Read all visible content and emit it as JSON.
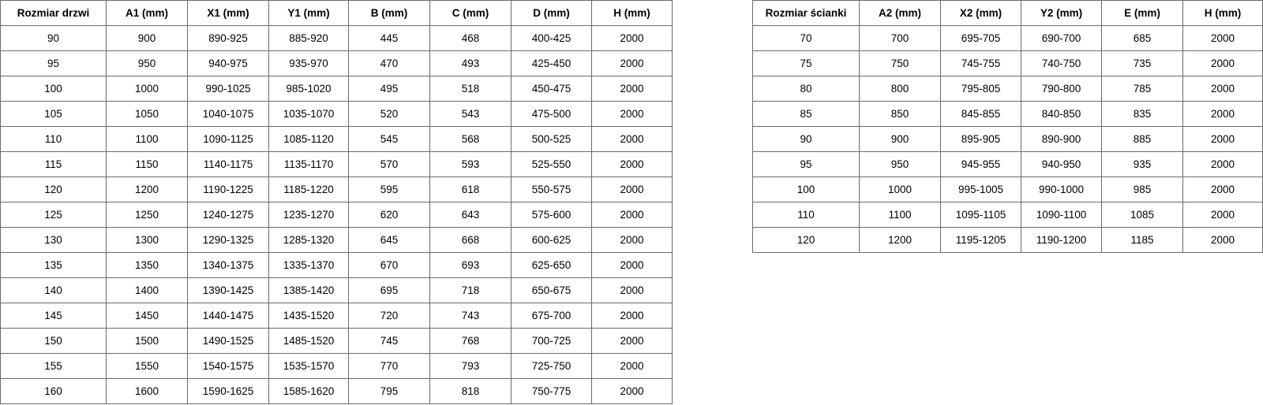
{
  "doors_table": {
    "headers": [
      "Rozmiar drzwi",
      "A1 (mm)",
      "X1 (mm)",
      "Y1 (mm)",
      "B (mm)",
      "C (mm)",
      "D (mm)",
      "H (mm)"
    ],
    "rows": [
      [
        "90",
        "900",
        "890-925",
        "885-920",
        "445",
        "468",
        "400-425",
        "2000"
      ],
      [
        "95",
        "950",
        "940-975",
        "935-970",
        "470",
        "493",
        "425-450",
        "2000"
      ],
      [
        "100",
        "1000",
        "990-1025",
        "985-1020",
        "495",
        "518",
        "450-475",
        "2000"
      ],
      [
        "105",
        "1050",
        "1040-1075",
        "1035-1070",
        "520",
        "543",
        "475-500",
        "2000"
      ],
      [
        "110",
        "1100",
        "1090-1125",
        "1085-1120",
        "545",
        "568",
        "500-525",
        "2000"
      ],
      [
        "115",
        "1150",
        "1140-1175",
        "1135-1170",
        "570",
        "593",
        "525-550",
        "2000"
      ],
      [
        "120",
        "1200",
        "1190-1225",
        "1185-1220",
        "595",
        "618",
        "550-575",
        "2000"
      ],
      [
        "125",
        "1250",
        "1240-1275",
        "1235-1270",
        "620",
        "643",
        "575-600",
        "2000"
      ],
      [
        "130",
        "1300",
        "1290-1325",
        "1285-1320",
        "645",
        "668",
        "600-625",
        "2000"
      ],
      [
        "135",
        "1350",
        "1340-1375",
        "1335-1370",
        "670",
        "693",
        "625-650",
        "2000"
      ],
      [
        "140",
        "1400",
        "1390-1425",
        "1385-1420",
        "695",
        "718",
        "650-675",
        "2000"
      ],
      [
        "145",
        "1450",
        "1440-1475",
        "1435-1520",
        "720",
        "743",
        "675-700",
        "2000"
      ],
      [
        "150",
        "1500",
        "1490-1525",
        "1485-1520",
        "745",
        "768",
        "700-725",
        "2000"
      ],
      [
        "155",
        "1550",
        "1540-1575",
        "1535-1570",
        "770",
        "793",
        "725-750",
        "2000"
      ],
      [
        "160",
        "1600",
        "1590-1625",
        "1585-1620",
        "795",
        "818",
        "750-775",
        "2000"
      ]
    ]
  },
  "wall_table": {
    "headers": [
      "Rozmiar ścianki",
      "A2 (mm)",
      "X2 (mm)",
      "Y2 (mm)",
      "E (mm)",
      "H (mm)"
    ],
    "rows": [
      [
        "70",
        "700",
        "695-705",
        "690-700",
        "685",
        "2000"
      ],
      [
        "75",
        "750",
        "745-755",
        "740-750",
        "735",
        "2000"
      ],
      [
        "80",
        "800",
        "795-805",
        "790-800",
        "785",
        "2000"
      ],
      [
        "85",
        "850",
        "845-855",
        "840-850",
        "835",
        "2000"
      ],
      [
        "90",
        "900",
        "895-905",
        "890-900",
        "885",
        "2000"
      ],
      [
        "95",
        "950",
        "945-955",
        "940-950",
        "935",
        "2000"
      ],
      [
        "100",
        "1000",
        "995-1005",
        "990-1000",
        "985",
        "2000"
      ],
      [
        "110",
        "1100",
        "1095-1105",
        "1090-1100",
        "1085",
        "2000"
      ],
      [
        "120",
        "1200",
        "1195-1205",
        "1190-1200",
        "1185",
        "2000"
      ]
    ]
  }
}
